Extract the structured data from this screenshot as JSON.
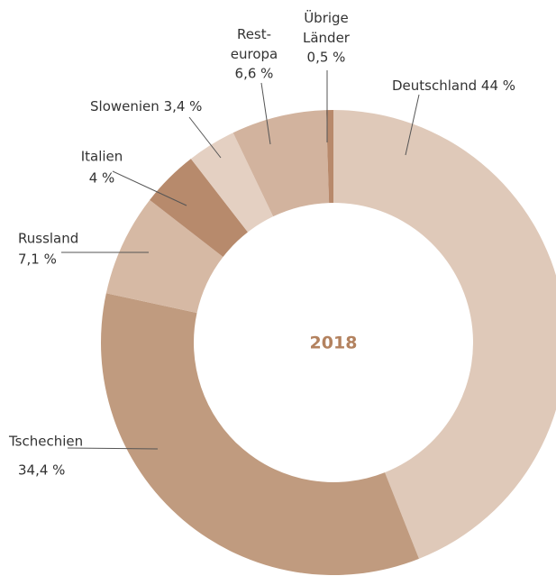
{
  "chart_data": {
    "type": "donut",
    "title": "2018",
    "categories": [
      "Deutschland",
      "Tschechien",
      "Russland",
      "Italien",
      "Slowenien",
      "Rest-\neuropa",
      "Übrige\nLänder"
    ],
    "values": [
      44,
      34.4,
      7.1,
      4,
      3.4,
      6.6,
      0.5
    ],
    "value_labels": [
      "44 %",
      "34,4 %",
      "7,1 %",
      "4 %",
      "3,4 %",
      "6,6 %",
      "0,5 %"
    ],
    "colors": [
      "#dfc9b9",
      "#c09b7f",
      "#d6b9a4",
      "#b78a6c",
      "#e4d0c2",
      "#d2b39e",
      "#b8896b"
    ]
  }
}
